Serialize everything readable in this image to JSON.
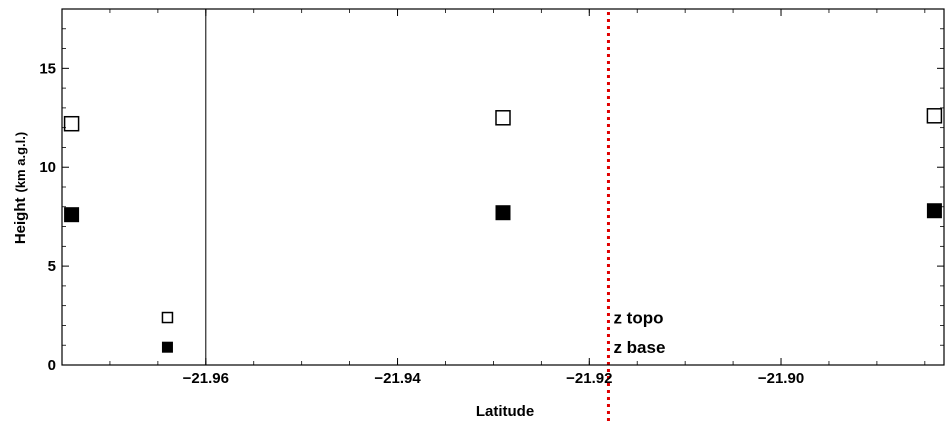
{
  "chart_data": {
    "type": "scatter",
    "title": "",
    "xlabel": "Latitude",
    "ylabel_main": "Height",
    "ylabel_unit": "(km a.g.l.)",
    "xlim": [
      -21.975,
      -21.883
    ],
    "ylim": [
      0,
      18
    ],
    "x_ticks": [
      -21.96,
      -21.94,
      -21.92,
      -21.9
    ],
    "x_tick_labels": [
      "−21.96",
      "−21.94",
      "−21.92",
      "−21.90"
    ],
    "y_ticks": [
      0,
      5,
      10,
      15
    ],
    "y_tick_labels": [
      "0",
      "5",
      "10",
      "15"
    ],
    "grid": false,
    "legend": "none",
    "series": [
      {
        "marker": "open-square",
        "color": "#000000",
        "points": [
          {
            "x": -21.974,
            "y": 12.2,
            "size": "large"
          },
          {
            "x": -21.964,
            "y": 2.4,
            "size": "small"
          },
          {
            "x": -21.929,
            "y": 12.5,
            "size": "large"
          },
          {
            "x": -21.884,
            "y": 12.6,
            "size": "large"
          }
        ]
      },
      {
        "marker": "filled-square",
        "color": "#000000",
        "points": [
          {
            "x": -21.974,
            "y": 7.6,
            "size": "large"
          },
          {
            "x": -21.964,
            "y": 0.9,
            "size": "small"
          },
          {
            "x": -21.929,
            "y": 7.7,
            "size": "large"
          },
          {
            "x": -21.884,
            "y": 7.8,
            "size": "large"
          }
        ]
      }
    ],
    "vertical_lines": [
      {
        "x": -21.96,
        "style": "solid",
        "color": "#000000"
      },
      {
        "x": -21.918,
        "style": "dotted",
        "color": "#e00000"
      }
    ],
    "annotations": [
      {
        "text": "z topo",
        "x": -21.918,
        "y": 2.4
      },
      {
        "text": "z base",
        "x": -21.918,
        "y": 0.9
      }
    ]
  }
}
